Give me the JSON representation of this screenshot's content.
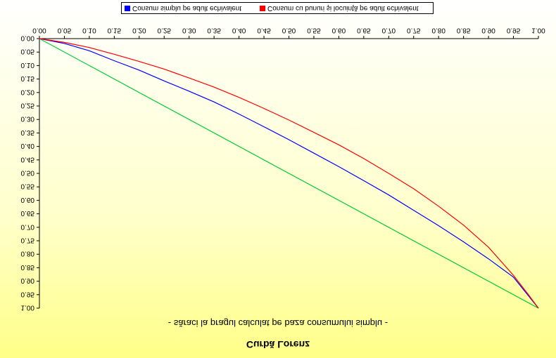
{
  "colors": {
    "series_1": "#0000ff",
    "series_2": "#ff0000",
    "equality": "#00cc33",
    "axis": "#000000",
    "text": "#000000",
    "frame": "#808080"
  },
  "chart_data": {
    "type": "line",
    "title": "Curbă Lorenz",
    "subtitle": "- săraci la pragul calculat pe baza consumului simplu -",
    "orientation": "mirrored-vertically",
    "x_ticks": [
      "0.00",
      "0.05",
      "0.10",
      "0.15",
      "0.20",
      "0.25",
      "0.30",
      "0.35",
      "0.40",
      "0.45",
      "0.50",
      "0.55",
      "0.60",
      "0.65",
      "0.70",
      "0.75",
      "0.80",
      "0.85",
      "0.90",
      "0.95",
      "1.00"
    ],
    "y_ticks": [
      "0.00",
      "0.05",
      "0.10",
      "0.15",
      "0.20",
      "0.25",
      "0.30",
      "0.35",
      "0.40",
      "0.45",
      "0.50",
      "0.55",
      "0.60",
      "0.65",
      "0.70",
      "0.75",
      "0.80",
      "0.85",
      "0.90",
      "0.95",
      "1.00"
    ],
    "xlim": [
      0,
      1
    ],
    "ylim": [
      0,
      1
    ],
    "grid": false,
    "legend_position": "top",
    "series": [
      {
        "name": "Consum simplu pe adult echivalent",
        "color": "#0000ff",
        "x": [
          0,
          0.05,
          0.1,
          0.15,
          0.2,
          0.25,
          0.3,
          0.35,
          0.4,
          0.45,
          0.5,
          0.55,
          0.6,
          0.65,
          0.7,
          0.75,
          0.8,
          0.85,
          0.9,
          0.95,
          1.0
        ],
        "y": [
          0,
          0.018,
          0.045,
          0.082,
          0.117,
          0.157,
          0.195,
          0.235,
          0.28,
          0.327,
          0.375,
          0.425,
          0.475,
          0.527,
          0.58,
          0.637,
          0.694,
          0.754,
          0.817,
          0.885,
          1.0
        ]
      },
      {
        "name": "Consum cu bunuri şi locuinţă pe adult echivalent",
        "color": "#ff0000",
        "x": [
          0,
          0.05,
          0.1,
          0.15,
          0.2,
          0.25,
          0.3,
          0.35,
          0.4,
          0.45,
          0.5,
          0.55,
          0.6,
          0.65,
          0.7,
          0.75,
          0.8,
          0.85,
          0.9,
          0.95,
          0.98,
          1.0
        ],
        "y": [
          0,
          0.014,
          0.033,
          0.058,
          0.085,
          0.113,
          0.146,
          0.18,
          0.218,
          0.259,
          0.302,
          0.348,
          0.394,
          0.445,
          0.5,
          0.557,
          0.622,
          0.692,
          0.774,
          0.878,
          0.95,
          1.0
        ]
      },
      {
        "color": "#00cc33",
        "x": [
          0,
          1
        ],
        "y": [
          0,
          1
        ]
      }
    ]
  }
}
